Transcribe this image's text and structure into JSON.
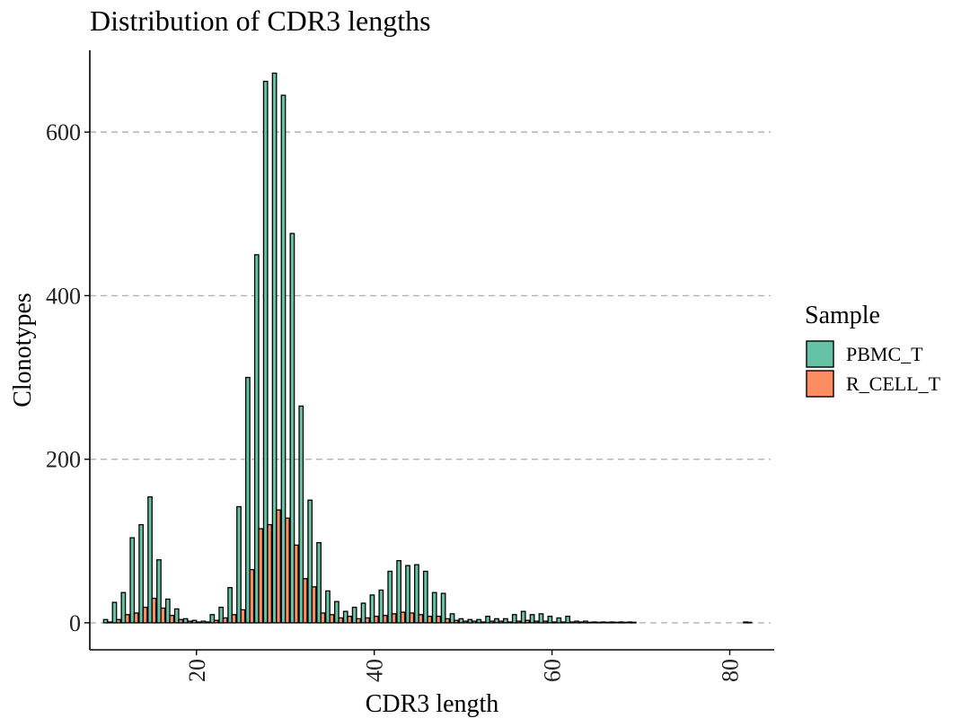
{
  "chart_data": {
    "type": "bar",
    "title": "Distribution of CDR3 lengths",
    "xlabel": "CDR3 length",
    "ylabel": "Clonotypes",
    "xlim": [
      8,
      85
    ],
    "ylim": [
      -33,
      700
    ],
    "xticks": [
      20,
      40,
      60,
      80
    ],
    "yticks": [
      0,
      200,
      400,
      600
    ],
    "grid": "horizontal dashed",
    "legend": {
      "title": "Sample",
      "position": "right"
    },
    "x": [
      10,
      11,
      12,
      13,
      14,
      15,
      16,
      17,
      18,
      19,
      20,
      21,
      22,
      23,
      24,
      25,
      26,
      27,
      28,
      29,
      30,
      31,
      32,
      33,
      34,
      35,
      36,
      37,
      38,
      39,
      40,
      41,
      42,
      43,
      44,
      45,
      46,
      47,
      48,
      49,
      50,
      51,
      52,
      53,
      54,
      55,
      56,
      57,
      58,
      59,
      60,
      61,
      62,
      63,
      64,
      65,
      66,
      67,
      68,
      69,
      82
    ],
    "series": [
      {
        "name": "PBMC_T",
        "color": "#66c2a5",
        "values": [
          4,
          25,
          37,
          104,
          120,
          154,
          77,
          29,
          17,
          5,
          3,
          2,
          10,
          19,
          43,
          142,
          300,
          450,
          662,
          672,
          645,
          476,
          265,
          150,
          98,
          39,
          26,
          14,
          19,
          24,
          34,
          40,
          63,
          76,
          70,
          71,
          63,
          37,
          36,
          11,
          5,
          4,
          4,
          8,
          5,
          5,
          10,
          14,
          10,
          11,
          8,
          6,
          8,
          2,
          2,
          1,
          1,
          1,
          1,
          1,
          1
        ]
      },
      {
        "name": "R_CELL_T",
        "color": "#fc8d62",
        "values": [
          1,
          4,
          10,
          12,
          19,
          30,
          18,
          9,
          4,
          2,
          1,
          1,
          3,
          6,
          10,
          16,
          65,
          115,
          120,
          138,
          128,
          95,
          54,
          44,
          12,
          10,
          6,
          8,
          5,
          6,
          8,
          9,
          11,
          13,
          12,
          10,
          8,
          8,
          5,
          3,
          2,
          2,
          1,
          2,
          2,
          1,
          2,
          3,
          2,
          2,
          1,
          1,
          1,
          1,
          0,
          0,
          0,
          0,
          0,
          0,
          0
        ]
      }
    ]
  }
}
